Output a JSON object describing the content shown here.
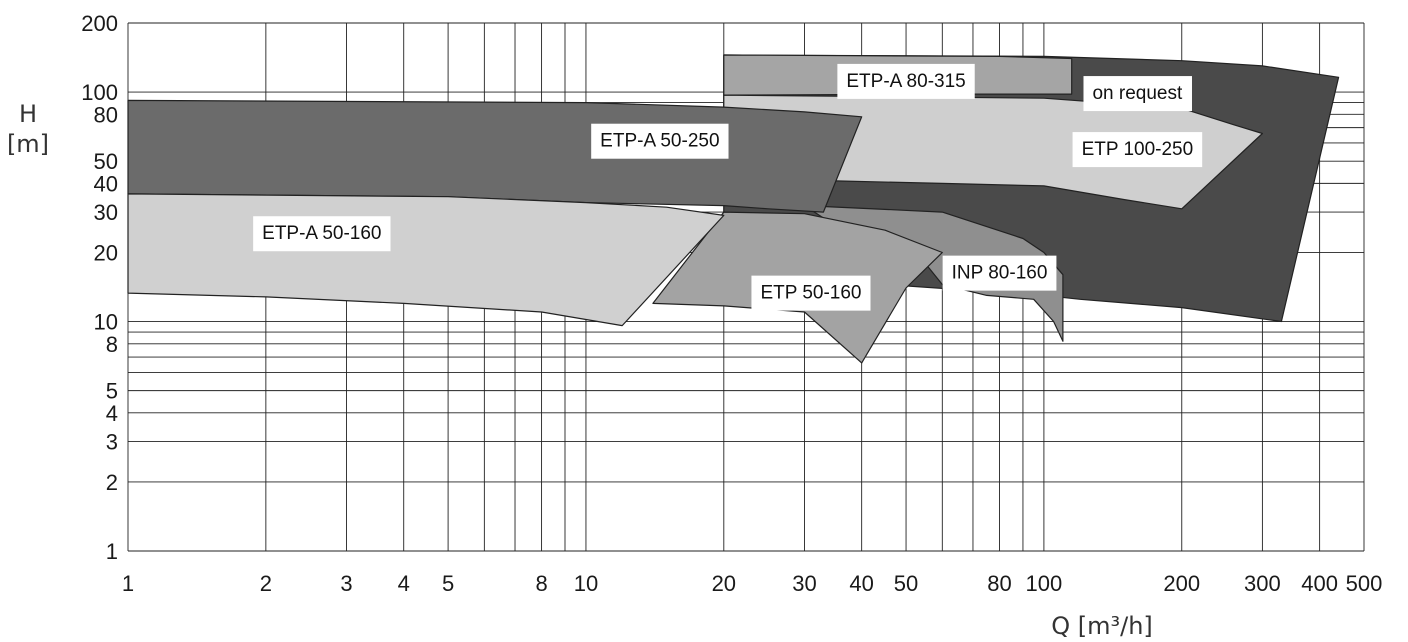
{
  "chart_data": {
    "type": "area",
    "title": "",
    "xlabel": "Q [m³/h]",
    "ylabel_top": "H",
    "ylabel_bottom": "[m]",
    "x_scale": "log",
    "y_scale": "log",
    "xlim": [
      1,
      500
    ],
    "ylim": [
      1,
      200
    ],
    "grid": true,
    "x_ticks": [
      1,
      2,
      3,
      4,
      5,
      6,
      7,
      8,
      9,
      10,
      20,
      30,
      40,
      50,
      60,
      70,
      80,
      90,
      100,
      200,
      300,
      400,
      500
    ],
    "x_tick_labels": [
      {
        "value": 1,
        "label": "1"
      },
      {
        "value": 2,
        "label": "2"
      },
      {
        "value": 3,
        "label": "3"
      },
      {
        "value": 4,
        "label": "4"
      },
      {
        "value": 5,
        "label": "5"
      },
      {
        "value": 8,
        "label": "8"
      },
      {
        "value": 10,
        "label": "10"
      },
      {
        "value": 20,
        "label": "20"
      },
      {
        "value": 30,
        "label": "30"
      },
      {
        "value": 40,
        "label": "40"
      },
      {
        "value": 50,
        "label": "50"
      },
      {
        "value": 80,
        "label": "80"
      },
      {
        "value": 100,
        "label": "100"
      },
      {
        "value": 200,
        "label": "200"
      },
      {
        "value": 300,
        "label": "300"
      },
      {
        "value": 400,
        "label": "400"
      },
      {
        "value": 500,
        "label": "500"
      }
    ],
    "y_ticks": [
      1,
      2,
      3,
      4,
      5,
      6,
      7,
      8,
      9,
      10,
      20,
      30,
      40,
      50,
      60,
      70,
      80,
      90,
      100,
      200
    ],
    "y_tick_labels": [
      {
        "value": 1,
        "label": "1"
      },
      {
        "value": 2,
        "label": "2"
      },
      {
        "value": 3,
        "label": "3"
      },
      {
        "value": 4,
        "label": "4"
      },
      {
        "value": 5,
        "label": "5"
      },
      {
        "value": 8,
        "label": "8"
      },
      {
        "value": 10,
        "label": "10"
      },
      {
        "value": 20,
        "label": "20"
      },
      {
        "value": 30,
        "label": "30"
      },
      {
        "value": 40,
        "label": "40"
      },
      {
        "value": 50,
        "label": "50"
      },
      {
        "value": 80,
        "label": "80"
      },
      {
        "value": 100,
        "label": "100"
      },
      {
        "value": 200,
        "label": "200"
      }
    ],
    "regions": [
      {
        "id": "on-request",
        "label": "on request",
        "color": "#4a4a4a",
        "polygon": [
          [
            20,
            145
          ],
          [
            100,
            143
          ],
          [
            200,
            137
          ],
          [
            300,
            130
          ],
          [
            440,
            116
          ],
          [
            330,
            10
          ],
          [
            200,
            11.5
          ],
          [
            120,
            12.5
          ],
          [
            100,
            13
          ],
          [
            45,
            14.5
          ],
          [
            30,
            16
          ],
          [
            20,
            20
          ]
        ],
        "label_at": [
          160,
          100
        ]
      },
      {
        "id": "etp-a-80-315",
        "label": "ETP-A 80-315",
        "color": "#a5a5a5",
        "polygon": [
          [
            20,
            145
          ],
          [
            80,
            143
          ],
          [
            115,
            140
          ],
          [
            115,
            98
          ],
          [
            60,
            98
          ],
          [
            20,
            97
          ]
        ],
        "label_at": [
          50,
          113
        ]
      },
      {
        "id": "etp-100-250",
        "label": "ETP 100-250",
        "color": "#cfcfcf",
        "polygon": [
          [
            20,
            97
          ],
          [
            100,
            94
          ],
          [
            200,
            85
          ],
          [
            260,
            72
          ],
          [
            300,
            66
          ],
          [
            200,
            31
          ],
          [
            150,
            34
          ],
          [
            100,
            39
          ],
          [
            60,
            40
          ],
          [
            35,
            41
          ],
          [
            20,
            42
          ]
        ],
        "label_at": [
          160,
          57
        ]
      },
      {
        "id": "inp-80-160",
        "label": "INP 80-160",
        "color": "#8f8f8f",
        "polygon": [
          [
            30,
            32
          ],
          [
            60,
            30
          ],
          [
            90,
            23
          ],
          [
            100,
            20
          ],
          [
            110,
            16
          ],
          [
            110,
            8.2
          ],
          [
            105,
            10
          ],
          [
            95,
            12.5
          ],
          [
            75,
            13
          ],
          [
            60,
            14.5
          ],
          [
            55,
            18
          ],
          [
            40,
            22
          ]
        ],
        "label_at": [
          80,
          16.5
        ]
      },
      {
        "id": "etp-50-160",
        "label": "ETP 50-160",
        "color": "#a3a3a3",
        "polygon": [
          [
            20,
            30
          ],
          [
            30,
            29.5
          ],
          [
            45,
            25
          ],
          [
            60,
            20
          ],
          [
            50,
            14
          ],
          [
            40,
            6.6
          ],
          [
            30,
            11
          ],
          [
            20,
            11.7
          ],
          [
            14,
            12
          ]
        ],
        "label_at": [
          31,
          13.5
        ]
      },
      {
        "id": "etp-a-50-250",
        "label": "ETP-A 50-250",
        "color": "#6b6b6b",
        "polygon": [
          [
            1,
            92
          ],
          [
            10,
            90
          ],
          [
            20,
            86
          ],
          [
            30,
            82
          ],
          [
            40,
            78
          ],
          [
            33,
            30
          ],
          [
            25,
            31
          ],
          [
            20,
            32
          ],
          [
            10,
            33
          ],
          [
            5,
            35
          ],
          [
            1,
            36
          ]
        ],
        "label_at": [
          14.5,
          62
        ]
      },
      {
        "id": "etp-a-50-160",
        "label": "ETP-A 50-160",
        "color": "#d0d0d0",
        "polygon": [
          [
            1,
            36
          ],
          [
            5,
            35
          ],
          [
            10,
            33
          ],
          [
            15,
            31.5
          ],
          [
            20,
            29
          ],
          [
            12,
            9.6
          ],
          [
            8,
            11
          ],
          [
            4,
            12
          ],
          [
            2,
            12.8
          ],
          [
            1,
            13.3
          ]
        ],
        "label_at": [
          2.65,
          24.5
        ]
      }
    ]
  }
}
